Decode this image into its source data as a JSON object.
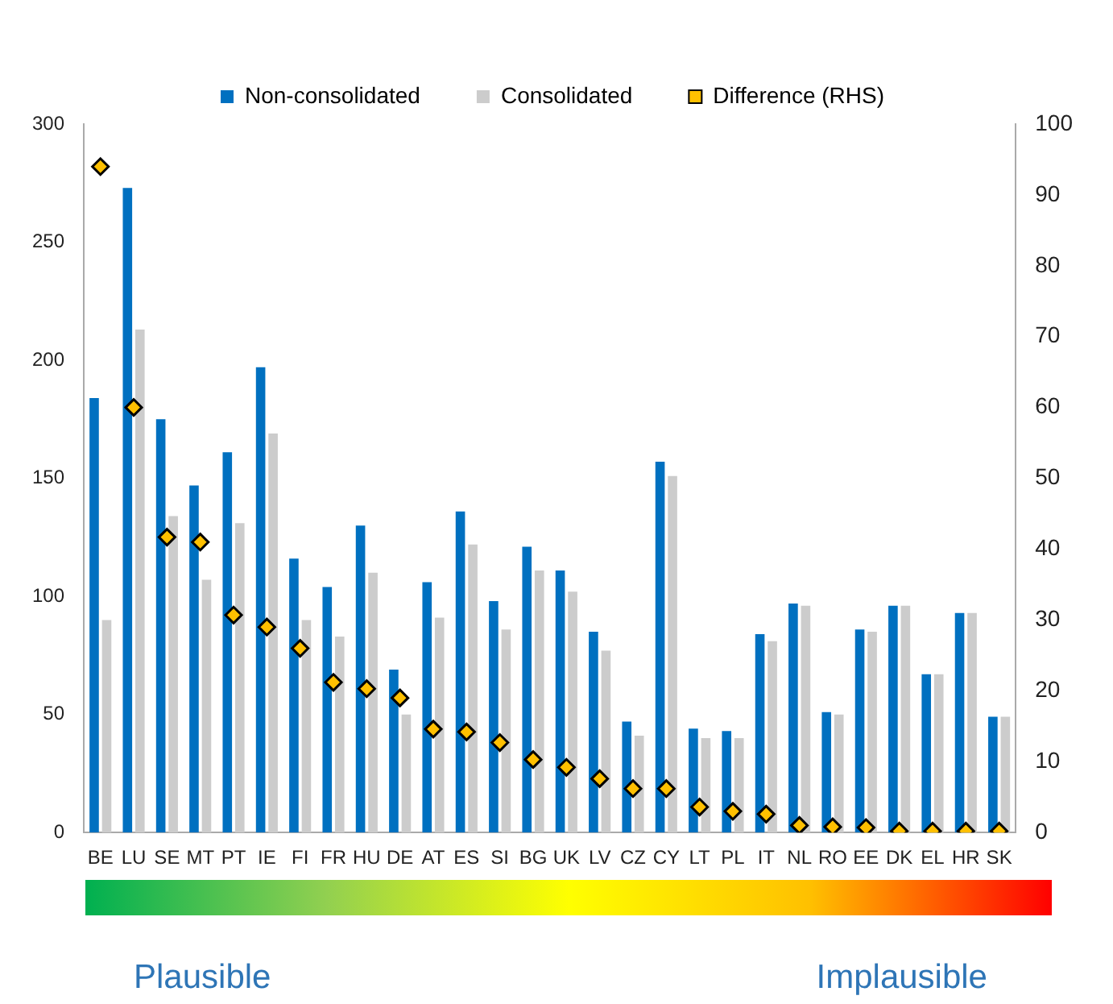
{
  "chart_data": {
    "type": "bar",
    "categories": [
      "BE",
      "LU",
      "SE",
      "MT",
      "PT",
      "IE",
      "FI",
      "FR",
      "HU",
      "DE",
      "AT",
      "ES",
      "SI",
      "BG",
      "UK",
      "LV",
      "CZ",
      "CY",
      "LT",
      "PL",
      "IT",
      "NL",
      "RO",
      "EE",
      "DK",
      "EL",
      "HR",
      "SK"
    ],
    "series": [
      {
        "name": "Non-consolidated",
        "color": "#0070c0",
        "values": [
          184,
          273,
          175,
          147,
          161,
          197,
          116,
          104,
          130,
          69,
          106,
          136,
          98,
          121,
          111,
          85,
          47,
          157,
          44,
          43,
          84,
          97,
          51,
          86,
          96,
          67,
          93,
          49
        ]
      },
      {
        "name": "Consolidated",
        "color": "#cccccc",
        "values": [
          90,
          213,
          134,
          107,
          131,
          169,
          90,
          83,
          110,
          50,
          91,
          122,
          86,
          111,
          102,
          77,
          41,
          151,
          40,
          40,
          81,
          96,
          50,
          85,
          96,
          67,
          93,
          49
        ]
      },
      {
        "name": "Difference (RHS)",
        "type": "scatter",
        "axis": "y2",
        "color": "#ffc000",
        "marker": "diamond",
        "values": [
          94,
          60,
          41.7,
          41,
          30.7,
          29,
          26,
          21.2,
          20.3,
          19,
          14.6,
          14.2,
          12.7,
          10.3,
          9.2,
          7.6,
          6.2,
          6.2,
          3.6,
          3,
          2.6,
          1,
          0.8,
          0.7,
          0.2,
          0.2,
          0.2,
          0.2
        ]
      }
    ],
    "ylim": [
      0,
      300
    ],
    "yticks": [
      0,
      50,
      100,
      150,
      200,
      250,
      300
    ],
    "y2lim": [
      0,
      100
    ],
    "y2ticks": [
      0,
      10,
      20,
      30,
      40,
      50,
      60,
      70,
      80,
      90,
      100
    ],
    "grid": false,
    "legend": "top",
    "annotations": [
      "Plausible",
      "Implausible"
    ]
  }
}
